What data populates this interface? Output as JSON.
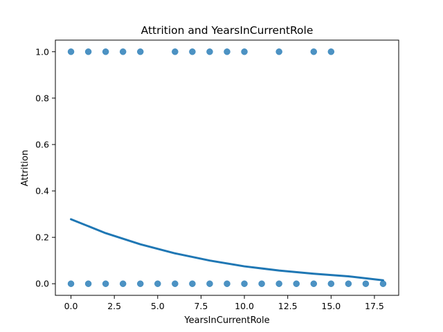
{
  "chart_data": {
    "type": "scatter",
    "title": "Attrition and YearsInCurrentRole",
    "xlabel": "YearsInCurrentRole",
    "ylabel": "Attrition",
    "xlim": [
      -0.9,
      18.9
    ],
    "ylim": [
      -0.05,
      1.05
    ],
    "xticks": [
      0.0,
      2.5,
      5.0,
      7.5,
      10.0,
      12.5,
      15.0,
      17.5
    ],
    "xtick_labels": [
      "0.0",
      "2.5",
      "5.0",
      "7.5",
      "10.0",
      "12.5",
      "15.0",
      "17.5"
    ],
    "yticks": [
      0.0,
      0.2,
      0.4,
      0.6,
      0.8,
      1.0
    ],
    "ytick_labels": [
      "0.0",
      "0.2",
      "0.4",
      "0.6",
      "0.8",
      "1.0"
    ],
    "grid": false,
    "colors": {
      "points": "#1f77b4",
      "fit": "#1f77b4"
    },
    "series": [
      {
        "kind": "scatter",
        "points": [
          [
            0,
            1
          ],
          [
            1,
            1
          ],
          [
            2,
            1
          ],
          [
            3,
            1
          ],
          [
            4,
            1
          ],
          [
            6,
            1
          ],
          [
            7,
            1
          ],
          [
            8,
            1
          ],
          [
            9,
            1
          ],
          [
            10,
            1
          ],
          [
            12,
            1
          ],
          [
            14,
            1
          ],
          [
            15,
            1
          ],
          [
            0,
            0
          ],
          [
            1,
            0
          ],
          [
            2,
            0
          ],
          [
            3,
            0
          ],
          [
            4,
            0
          ],
          [
            5,
            0
          ],
          [
            6,
            0
          ],
          [
            7,
            0
          ],
          [
            8,
            0
          ],
          [
            9,
            0
          ],
          [
            10,
            0
          ],
          [
            11,
            0
          ],
          [
            12,
            0
          ],
          [
            13,
            0
          ],
          [
            14,
            0
          ],
          [
            15,
            0
          ],
          [
            16,
            0
          ],
          [
            17,
            0
          ],
          [
            18,
            0
          ]
        ]
      },
      {
        "kind": "line",
        "x": [
          0,
          2,
          4,
          6,
          8,
          10,
          12,
          14,
          16,
          18
        ],
        "y": [
          0.278,
          0.218,
          0.17,
          0.131,
          0.1,
          0.075,
          0.057,
          0.043,
          0.032,
          0.015
        ]
      }
    ]
  }
}
